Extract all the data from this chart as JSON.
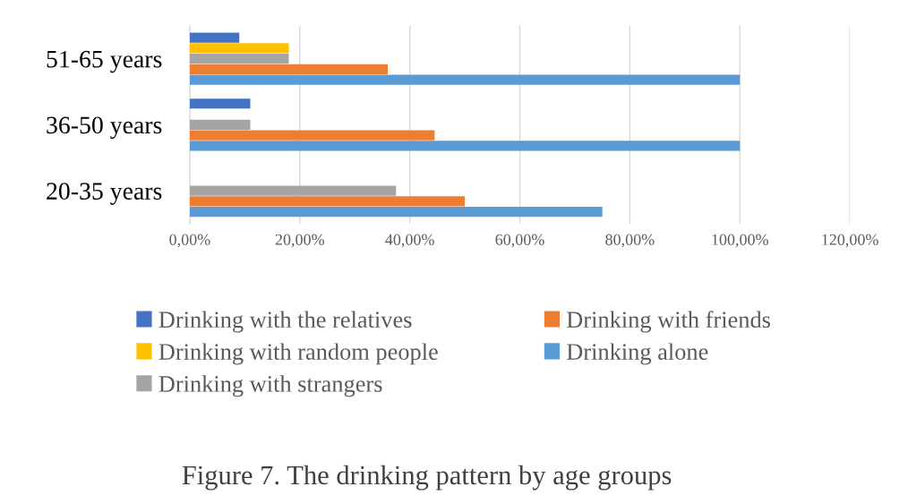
{
  "chart_data": {
    "type": "bar",
    "orientation": "horizontal",
    "title": "Figure 7. The drinking pattern by age groups",
    "categories": [
      "51-65 years",
      "36-50 years",
      "20-35 years"
    ],
    "series": [
      {
        "name": "Drinking with the relatives",
        "color": "#4472c4",
        "values": [
          9,
          11,
          0
        ]
      },
      {
        "name": "Drinking with random people",
        "color": "#ffc000",
        "values": [
          18,
          0,
          0
        ]
      },
      {
        "name": "Drinking with strangers",
        "color": "#a5a5a5",
        "values": [
          18,
          11,
          37.5
        ]
      },
      {
        "name": "Drinking with friends",
        "color": "#ed7d31",
        "values": [
          36,
          44.5,
          50
        ]
      },
      {
        "name": "Drinking alone",
        "color": "#5b9bd5",
        "values": [
          100,
          100,
          75
        ]
      }
    ],
    "xlim": [
      0,
      120
    ],
    "xticks": [
      {
        "value": 0,
        "label": "0,00%"
      },
      {
        "value": 20,
        "label": "20,00%"
      },
      {
        "value": 40,
        "label": "40,00%"
      },
      {
        "value": 60,
        "label": "60,00%"
      },
      {
        "value": 80,
        "label": "80,00%"
      },
      {
        "value": 100,
        "label": "100,00%"
      },
      {
        "value": 120,
        "label": "120,00%"
      }
    ],
    "grid": "x",
    "legend": "bottom"
  }
}
